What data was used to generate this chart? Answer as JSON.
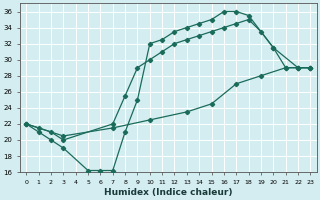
{
  "xlabel": "Humidex (Indice chaleur)",
  "bg_color": "#d4edf0",
  "grid_color": "#ffffff",
  "line_color": "#1a6b5a",
  "xlim": [
    -0.5,
    23.5
  ],
  "ylim": [
    16,
    37
  ],
  "xticks": [
    0,
    1,
    2,
    3,
    4,
    5,
    6,
    7,
    8,
    9,
    10,
    11,
    12,
    13,
    14,
    15,
    16,
    17,
    18,
    19,
    20,
    21,
    22,
    23
  ],
  "yticks": [
    16,
    18,
    20,
    22,
    24,
    26,
    28,
    30,
    32,
    34,
    36
  ],
  "curve1_x": [
    0,
    1,
    2,
    3,
    5,
    6,
    7,
    8,
    9,
    10,
    11,
    12,
    13,
    14,
    15,
    16,
    17,
    18,
    20,
    22,
    23
  ],
  "curve1_y": [
    22,
    21,
    20,
    19,
    16.2,
    16.2,
    16.2,
    21,
    25,
    32,
    32.5,
    33.5,
    34,
    34.5,
    35,
    36,
    36,
    35.5,
    31.5,
    29,
    29
  ],
  "curve2_x": [
    0,
    1,
    2,
    3,
    7,
    8,
    9,
    10,
    11,
    12,
    13,
    14,
    15,
    16,
    17,
    18,
    19,
    20,
    21,
    22,
    23
  ],
  "curve2_y": [
    22,
    21.5,
    21,
    20,
    22,
    25.5,
    29,
    30,
    31,
    32,
    32.5,
    33,
    33.5,
    34,
    34.5,
    35,
    33.5,
    31.5,
    29,
    29,
    29
  ],
  "curve3_x": [
    0,
    3,
    7,
    10,
    13,
    15,
    17,
    19,
    21,
    22,
    23
  ],
  "curve3_y": [
    22,
    20.5,
    21.5,
    22.5,
    23.5,
    24.5,
    27,
    28,
    29,
    29,
    29
  ]
}
